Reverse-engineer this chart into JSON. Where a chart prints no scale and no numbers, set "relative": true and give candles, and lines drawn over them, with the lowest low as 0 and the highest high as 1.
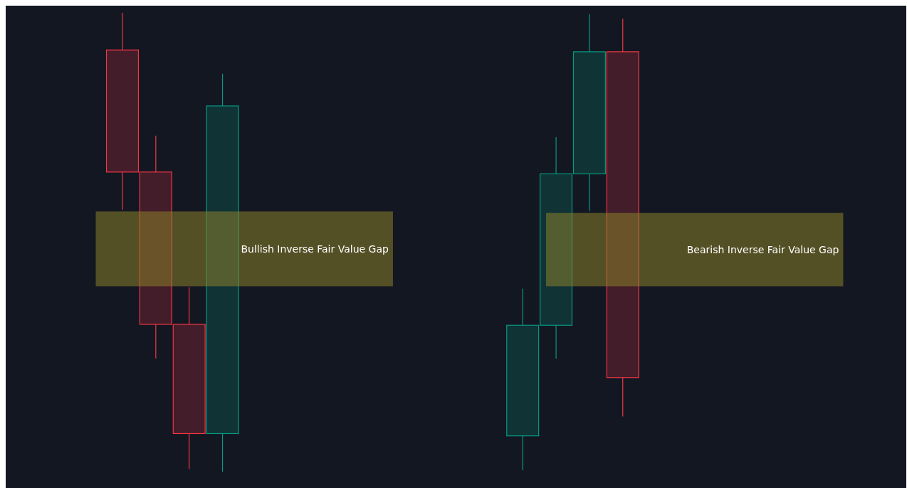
{
  "chart_data": {
    "type": "candlestick",
    "relative": true,
    "categories": [
      null,
      null,
      null,
      null,
      null,
      null,
      null,
      null,
      null,
      null,
      null,
      null,
      null,
      null,
      null,
      null,
      null,
      null,
      null,
      null,
      null,
      null,
      null,
      null,
      null,
      null,
      null
    ],
    "ohlc": [
      null,
      null,
      null,
      [
        0.919,
        1.0,
        0.571,
        0.653
      ],
      [
        0.653,
        0.732,
        0.247,
        0.321
      ],
      [
        0.321,
        0.402,
        0.006,
        0.083
      ],
      [
        0.083,
        0.867,
        0.0,
        0.797
      ],
      null,
      null,
      null,
      null,
      null,
      null,
      null,
      null,
      [
        0.078,
        0.399,
        0.003,
        0.319
      ],
      [
        0.319,
        0.729,
        0.246,
        0.649
      ],
      [
        0.649,
        0.997,
        0.568,
        0.915
      ],
      [
        0.915,
        0.987,
        0.12,
        0.205
      ],
      null,
      null,
      null,
      null,
      null,
      null,
      null,
      null
    ],
    "colors": [
      null,
      null,
      null,
      "#f23645",
      "#f23645",
      "#f23645",
      "#089981",
      null,
      null,
      null,
      null,
      null,
      null,
      null,
      null,
      "#089981",
      "#089981",
      "#089981",
      "#f23645",
      null,
      null,
      null,
      null,
      null,
      null,
      null,
      null
    ],
    "bands": [
      {
        "axis": "y",
        "from": 0.404,
        "to": 0.567,
        "label": "Bullish Inverse Fair Value Gap",
        "color": "#8a7f2a"
      },
      {
        "axis": "y",
        "from": 0.404,
        "to": 0.564,
        "label": "Bearish Inverse Fair Value Gap",
        "color": "#8a7f2a"
      }
    ]
  }
}
